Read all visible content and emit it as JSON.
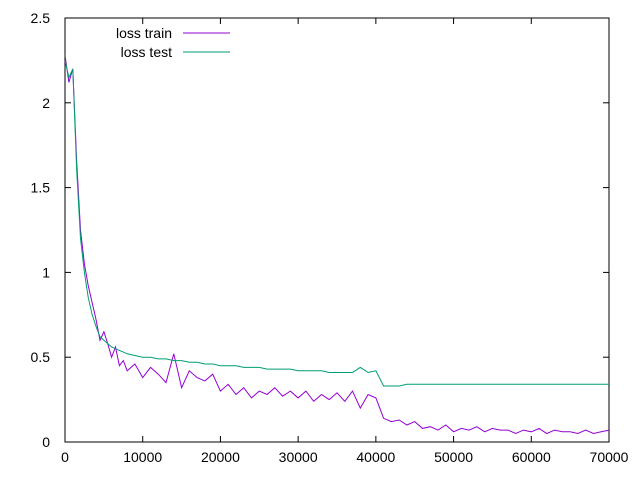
{
  "chart_data": {
    "type": "line",
    "title": "",
    "xlabel": "",
    "ylabel": "",
    "xlim": [
      0,
      70000
    ],
    "ylim": [
      0,
      2.5
    ],
    "x_ticks": [
      0,
      10000,
      20000,
      30000,
      40000,
      50000,
      60000,
      70000
    ],
    "y_ticks": [
      0,
      0.5,
      1,
      1.5,
      2,
      2.5
    ],
    "x_tick_labels": [
      "0",
      "10000",
      "20000",
      "30000",
      "40000",
      "50000",
      "60000",
      "70000"
    ],
    "y_tick_labels": [
      "0",
      "0.5",
      "1",
      "1.5",
      "2",
      "2.5"
    ],
    "grid": false,
    "legend_position": "top-left",
    "series": [
      {
        "name": "loss train",
        "color": "#9400d3",
        "x": [
          0,
          500,
          1000,
          1500,
          2000,
          2500,
          3000,
          3500,
          4000,
          4500,
          5000,
          5500,
          6000,
          6500,
          7000,
          7500,
          8000,
          9000,
          10000,
          11000,
          12000,
          13000,
          14000,
          15000,
          16000,
          17000,
          18000,
          19000,
          20000,
          21000,
          22000,
          23000,
          24000,
          25000,
          26000,
          27000,
          28000,
          29000,
          30000,
          31000,
          32000,
          33000,
          34000,
          35000,
          36000,
          37000,
          38000,
          39000,
          40000,
          41000,
          42000,
          43000,
          44000,
          45000,
          46000,
          47000,
          48000,
          49000,
          50000,
          51000,
          52000,
          53000,
          54000,
          55000,
          56000,
          57000,
          58000,
          59000,
          60000,
          61000,
          62000,
          63000,
          64000,
          65000,
          66000,
          67000,
          68000,
          69000,
          70000
        ],
        "values": [
          2.28,
          2.12,
          2.2,
          1.65,
          1.25,
          1.05,
          0.92,
          0.82,
          0.72,
          0.6,
          0.65,
          0.58,
          0.5,
          0.56,
          0.45,
          0.48,
          0.42,
          0.46,
          0.38,
          0.44,
          0.4,
          0.35,
          0.52,
          0.32,
          0.42,
          0.38,
          0.36,
          0.4,
          0.3,
          0.34,
          0.28,
          0.32,
          0.26,
          0.3,
          0.28,
          0.32,
          0.27,
          0.3,
          0.26,
          0.3,
          0.24,
          0.28,
          0.25,
          0.29,
          0.24,
          0.3,
          0.2,
          0.28,
          0.26,
          0.14,
          0.12,
          0.13,
          0.1,
          0.12,
          0.08,
          0.09,
          0.07,
          0.1,
          0.06,
          0.08,
          0.07,
          0.09,
          0.06,
          0.08,
          0.07,
          0.07,
          0.05,
          0.07,
          0.06,
          0.08,
          0.05,
          0.07,
          0.06,
          0.06,
          0.05,
          0.07,
          0.05,
          0.06,
          0.07
        ]
      },
      {
        "name": "loss test",
        "color": "#009e73",
        "x": [
          0,
          500,
          1000,
          1500,
          2000,
          2500,
          3000,
          3500,
          4000,
          4500,
          5000,
          5500,
          6000,
          6500,
          7000,
          7500,
          8000,
          9000,
          10000,
          11000,
          12000,
          13000,
          14000,
          15000,
          16000,
          17000,
          18000,
          19000,
          20000,
          21000,
          22000,
          23000,
          24000,
          25000,
          26000,
          27000,
          28000,
          29000,
          30000,
          31000,
          32000,
          33000,
          34000,
          35000,
          36000,
          37000,
          38000,
          39000,
          40000,
          41000,
          42000,
          43000,
          44000,
          45000,
          46000,
          47000,
          48000,
          49000,
          50000,
          51000,
          52000,
          53000,
          54000,
          55000,
          56000,
          57000,
          58000,
          59000,
          60000,
          61000,
          62000,
          63000,
          64000,
          65000,
          66000,
          67000,
          68000,
          69000,
          70000
        ],
        "values": [
          2.25,
          2.15,
          2.2,
          1.6,
          1.2,
          1.0,
          0.85,
          0.75,
          0.68,
          0.62,
          0.6,
          0.58,
          0.56,
          0.55,
          0.54,
          0.53,
          0.52,
          0.51,
          0.5,
          0.5,
          0.49,
          0.49,
          0.48,
          0.48,
          0.47,
          0.47,
          0.46,
          0.46,
          0.45,
          0.45,
          0.45,
          0.44,
          0.44,
          0.44,
          0.43,
          0.43,
          0.43,
          0.43,
          0.42,
          0.42,
          0.42,
          0.42,
          0.41,
          0.41,
          0.41,
          0.41,
          0.44,
          0.41,
          0.42,
          0.33,
          0.33,
          0.33,
          0.34,
          0.34,
          0.34,
          0.34,
          0.34,
          0.34,
          0.34,
          0.34,
          0.34,
          0.34,
          0.34,
          0.34,
          0.34,
          0.34,
          0.34,
          0.34,
          0.34,
          0.34,
          0.34,
          0.34,
          0.34,
          0.34,
          0.34,
          0.34,
          0.34,
          0.34,
          0.34
        ]
      }
    ]
  }
}
